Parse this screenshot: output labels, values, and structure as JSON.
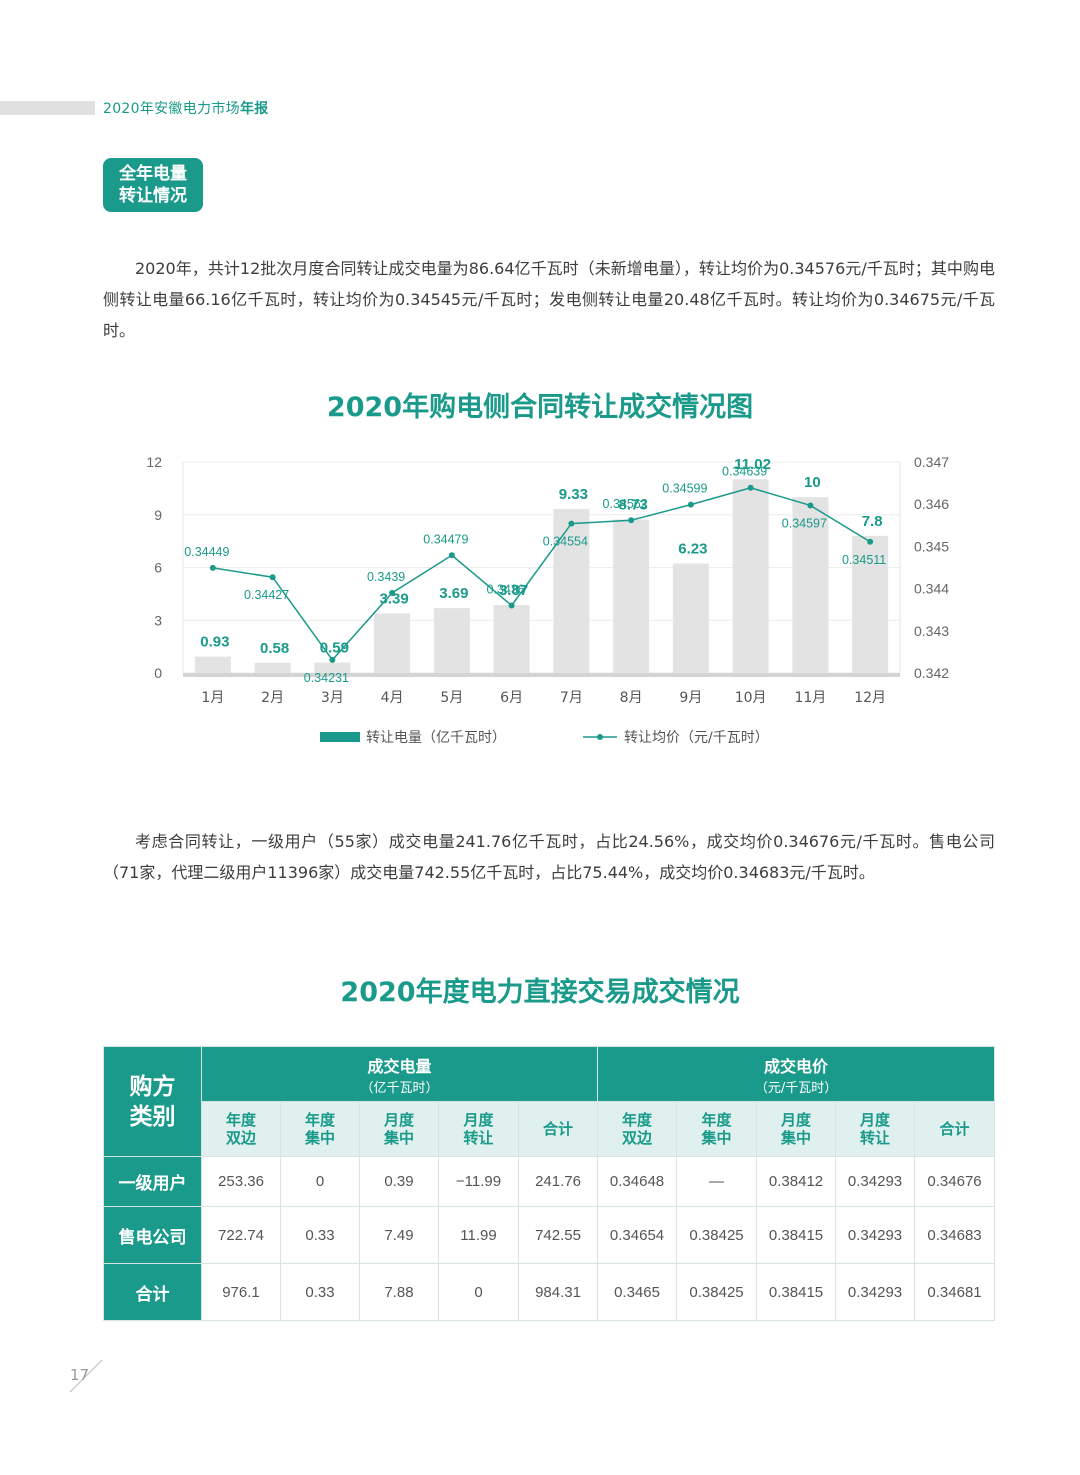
{
  "header": {
    "title_plain": "2020年安徽电力市场",
    "title_bold": "年报"
  },
  "tag": {
    "line1": "全年电量",
    "line2": "转让情况"
  },
  "para1": "2020年，共计12批次月度合同转让成交电量为86.64亿千瓦时（未新增电量），转让均价为0.34576元/千瓦时；其中购电侧转让电量66.16亿千瓦时，转让均价为0.34545元/千瓦时；发电侧转让电量20.48亿千瓦时。转让均价为0.34675元/千瓦时。",
  "chart_title": "2020年购电侧合同转让成交情况图",
  "chart_data": {
    "type": "bar+line",
    "title": "2020年购电侧合同转让成交情况图",
    "categories": [
      "1月",
      "2月",
      "3月",
      "4月",
      "5月",
      "6月",
      "7月",
      "8月",
      "9月",
      "10月",
      "11月",
      "12月"
    ],
    "series": [
      {
        "name": "转让电量（亿千瓦时）",
        "type": "bar",
        "axis": "left",
        "color": "#1a9a8a",
        "values": [
          0.93,
          0.58,
          0.59,
          3.39,
          3.69,
          3.87,
          9.33,
          8.73,
          6.23,
          11.02,
          10,
          7.8
        ]
      },
      {
        "name": "转让均价（元/千瓦时）",
        "type": "line",
        "axis": "right",
        "color": "#1a9a8a",
        "values": [
          0.34449,
          0.34427,
          0.34231,
          0.3439,
          0.34479,
          0.3436,
          0.34554,
          0.34562,
          0.34599,
          0.34639,
          0.34597,
          0.34511
        ]
      }
    ],
    "bar_labels": [
      "0.93",
      "0.58",
      "0.59",
      "3.39",
      "3.69",
      "3.87",
      "9.33",
      "8.73",
      "6.23",
      "11.02",
      "10",
      "7.8"
    ],
    "line_labels": [
      "0.34449",
      "0.34427",
      "0.34231",
      "0.3439",
      "0.34479",
      "0.3436",
      "0.34554",
      "0.34562",
      "0.34599",
      "0.34639",
      "0.34597",
      "0.34511"
    ],
    "ylim_left": [
      0,
      12
    ],
    "yticks_left": [
      "0",
      "3",
      "6",
      "9",
      "12"
    ],
    "ylim_right": [
      0.342,
      0.347
    ],
    "yticks_right": [
      "0.342",
      "0.343",
      "0.344",
      "0.345",
      "0.346",
      "0.347"
    ],
    "grid": true,
    "legend_position": "bottom"
  },
  "para2": "考虑合同转让，一级用户（55家）成交电量241.76亿千瓦时，占比24.56%，成交均价0.34676元/千瓦时。售电公司（71家，代理二级用户11396家）成交电量742.55亿千瓦时，占比75.44%，成交均价0.34683元/千瓦时。",
  "table_title": "2020年度电力直接交易成交情况",
  "table": {
    "corner_line1": "购方",
    "corner_line2": "类别",
    "group1_title": "成交电量",
    "group1_unit": "（亿千瓦时）",
    "group2_title": "成交电价",
    "group2_unit": "（元/千瓦时）",
    "sub_headers": [
      [
        "年度",
        "双边"
      ],
      [
        "年度",
        "集中"
      ],
      [
        "月度",
        "集中"
      ],
      [
        "月度",
        "转让"
      ],
      [
        "合计",
        ""
      ],
      [
        "年度",
        "双边"
      ],
      [
        "年度",
        "集中"
      ],
      [
        "月度",
        "集中"
      ],
      [
        "月度",
        "转让"
      ],
      [
        "合计",
        ""
      ]
    ],
    "rows": [
      {
        "label": "一级用户",
        "cells": [
          "253.36",
          "0",
          "0.39",
          "−11.99",
          "241.76",
          "0.34648",
          "—",
          "0.38412",
          "0.34293",
          "0.34676"
        ]
      },
      {
        "label": "售电公司",
        "cells": [
          "722.74",
          "0.33",
          "7.49",
          "11.99",
          "742.55",
          "0.34654",
          "0.38425",
          "0.38415",
          "0.34293",
          "0.34683"
        ]
      },
      {
        "label": "合计",
        "cells": [
          "976.1",
          "0.33",
          "7.88",
          "0",
          "984.31",
          "0.3465",
          "0.38425",
          "0.38415",
          "0.34293",
          "0.34681"
        ]
      }
    ]
  },
  "page_number": "17"
}
